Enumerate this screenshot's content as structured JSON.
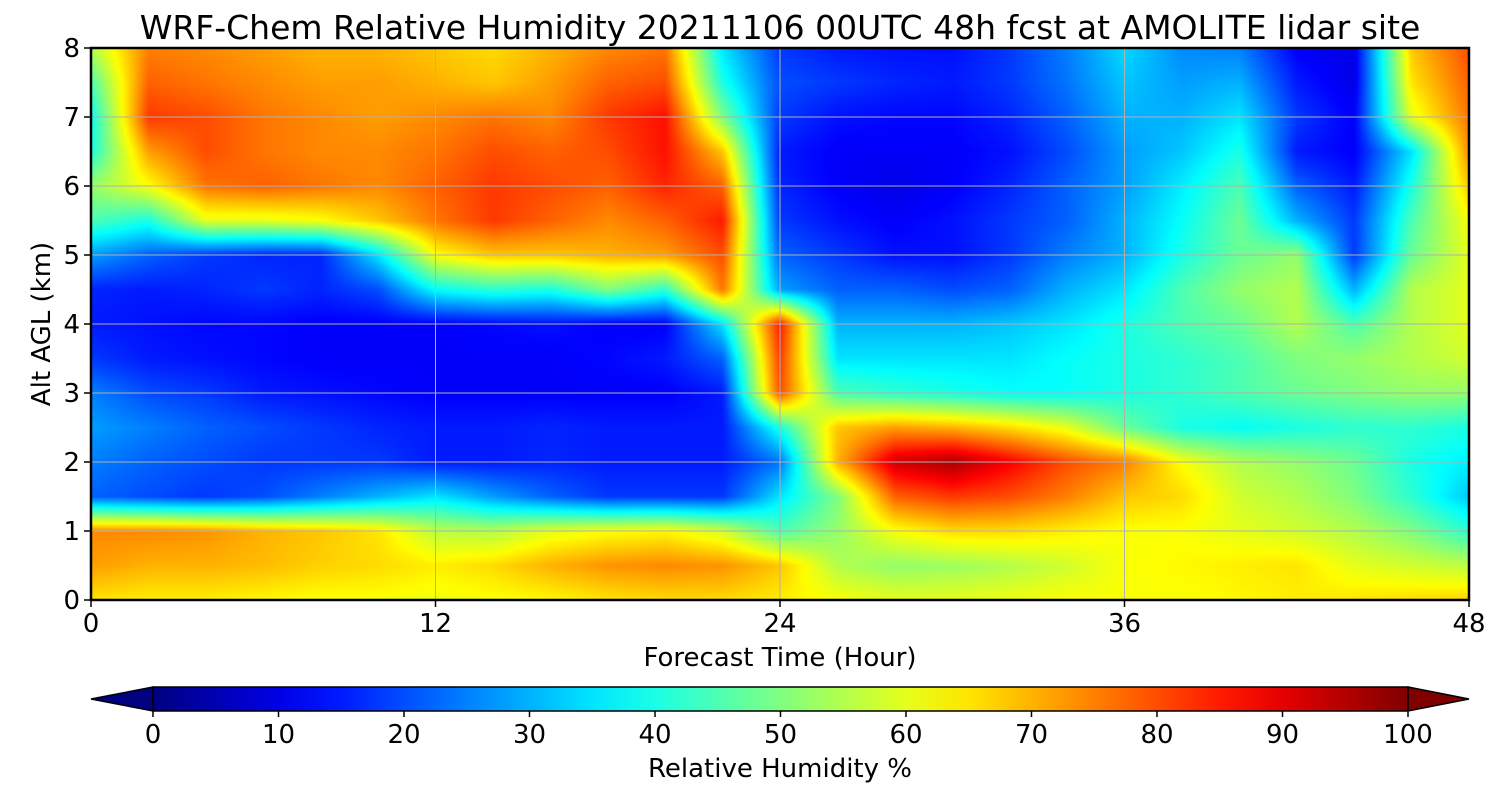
{
  "chart_data": {
    "type": "heatmap",
    "title": "WRF-Chem Relative Humidity 20211106 00UTC 48h fcst at AMOLITE lidar site",
    "xlabel": "Forecast Time (Hour)",
    "ylabel": "Alt AGL (km)",
    "xlim": [
      0,
      48
    ],
    "ylim": [
      0,
      8
    ],
    "x_ticks": [
      "0",
      "12",
      "24",
      "36",
      "48"
    ],
    "y_ticks": [
      "0",
      "1",
      "2",
      "3",
      "4",
      "5",
      "6",
      "7",
      "8"
    ],
    "grid": true,
    "colorbar": {
      "label": "Relative Humidity %",
      "orientation": "horizontal",
      "colormap": "jet",
      "extend": "both",
      "range": [
        0,
        100
      ],
      "ticks": [
        "0",
        "10",
        "20",
        "30",
        "40",
        "50",
        "60",
        "70",
        "80",
        "90",
        "100"
      ]
    },
    "x": [
      0,
      2,
      4,
      6,
      8,
      10,
      12,
      14,
      16,
      18,
      20,
      22,
      24,
      26,
      28,
      30,
      32,
      34,
      36,
      38,
      40,
      42,
      44,
      46,
      48
    ],
    "y": [
      0,
      0.5,
      1,
      1.5,
      2,
      2.5,
      3,
      3.5,
      4,
      4.5,
      5,
      5.5,
      6,
      6.5,
      7,
      7.5,
      8
    ],
    "z": [
      [
        65,
        64,
        64,
        63,
        62,
        62,
        61,
        62,
        63,
        65,
        66,
        66,
        64,
        62,
        60,
        60,
        61,
        62,
        62,
        62,
        63,
        64,
        65,
        66,
        67
      ],
      [
        72,
        70,
        70,
        69,
        67,
        66,
        64,
        66,
        70,
        73,
        74,
        73,
        68,
        55,
        52,
        53,
        55,
        58,
        62,
        63,
        64,
        65,
        60,
        58,
        56
      ],
      [
        74,
        74,
        73,
        70,
        68,
        65,
        56,
        55,
        60,
        62,
        63,
        58,
        45,
        52,
        62,
        66,
        66,
        64,
        62,
        62,
        60,
        58,
        55,
        50,
        42
      ],
      [
        22,
        20,
        18,
        20,
        25,
        30,
        35,
        28,
        22,
        18,
        18,
        18,
        35,
        50,
        78,
        82,
        80,
        75,
        68,
        66,
        58,
        55,
        50,
        42,
        32
      ],
      [
        25,
        22,
        20,
        18,
        18,
        18,
        15,
        15,
        16,
        15,
        15,
        15,
        24,
        70,
        92,
        96,
        88,
        80,
        75,
        62,
        55,
        52,
        48,
        40,
        36
      ],
      [
        28,
        25,
        22,
        20,
        18,
        16,
        15,
        15,
        16,
        15,
        15,
        15,
        40,
        68,
        72,
        70,
        66,
        60,
        48,
        40,
        38,
        40,
        42,
        42,
        40
      ],
      [
        25,
        20,
        18,
        15,
        14,
        13,
        12,
        12,
        12,
        12,
        12,
        15,
        80,
        45,
        42,
        40,
        38,
        38,
        40,
        42,
        45,
        48,
        50,
        52,
        52
      ],
      [
        18,
        15,
        14,
        13,
        12,
        12,
        12,
        12,
        12,
        13,
        15,
        22,
        82,
        35,
        35,
        35,
        35,
        38,
        40,
        42,
        45,
        50,
        52,
        55,
        58
      ],
      [
        15,
        14,
        13,
        13,
        12,
        12,
        12,
        13,
        14,
        12,
        12,
        35,
        85,
        30,
        30,
        30,
        32,
        35,
        40,
        45,
        48,
        55,
        45,
        55,
        60
      ],
      [
        16,
        15,
        16,
        18,
        16,
        20,
        38,
        42,
        40,
        50,
        42,
        76,
        28,
        22,
        22,
        20,
        22,
        30,
        35,
        45,
        52,
        55,
        30,
        55,
        60
      ],
      [
        28,
        22,
        18,
        16,
        16,
        35,
        62,
        68,
        68,
        70,
        72,
        80,
        22,
        18,
        14,
        14,
        18,
        25,
        30,
        40,
        48,
        52,
        18,
        48,
        60
      ],
      [
        45,
        40,
        60,
        60,
        62,
        68,
        76,
        82,
        78,
        74,
        78,
        85,
        18,
        14,
        12,
        14,
        18,
        22,
        30,
        38,
        48,
        30,
        18,
        45,
        62
      ],
      [
        52,
        62,
        76,
        78,
        76,
        74,
        78,
        82,
        80,
        78,
        84,
        78,
        16,
        12,
        10,
        12,
        16,
        22,
        28,
        36,
        45,
        22,
        15,
        40,
        68
      ],
      [
        40,
        72,
        80,
        76,
        74,
        74,
        76,
        80,
        78,
        80,
        86,
        68,
        15,
        12,
        12,
        12,
        14,
        20,
        28,
        32,
        40,
        15,
        12,
        35,
        74
      ],
      [
        38,
        82,
        80,
        76,
        74,
        72,
        74,
        76,
        74,
        82,
        86,
        50,
        18,
        14,
        13,
        13,
        16,
        22,
        30,
        30,
        35,
        18,
        12,
        60,
        76
      ],
      [
        45,
        78,
        76,
        74,
        72,
        72,
        70,
        68,
        72,
        78,
        80,
        40,
        20,
        18,
        16,
        15,
        18,
        24,
        32,
        28,
        30,
        15,
        10,
        65,
        78
      ],
      [
        55,
        75,
        74,
        72,
        70,
        70,
        68,
        66,
        70,
        74,
        76,
        35,
        18,
        15,
        14,
        14,
        18,
        25,
        34,
        26,
        25,
        12,
        10,
        68,
        80
      ]
    ]
  }
}
